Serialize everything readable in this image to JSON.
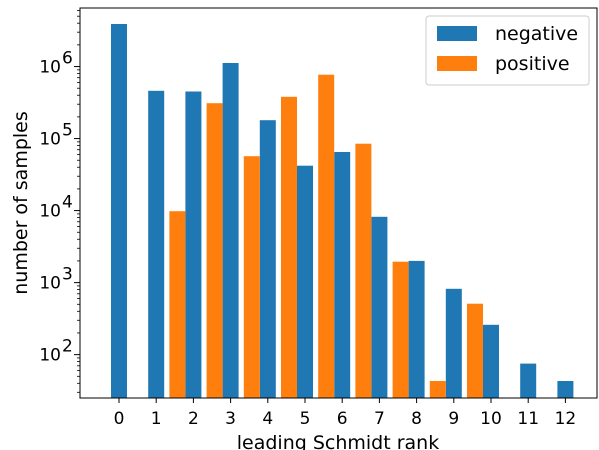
{
  "chart_data": {
    "type": "bar",
    "xlabel": "leading Schmidt rank",
    "ylabel": "number of samples",
    "yscale": "log",
    "ylim": [
      25,
      6500000
    ],
    "categories": [
      "0",
      "1",
      "2",
      "3",
      "4",
      "5",
      "6",
      "7",
      "8",
      "9",
      "10",
      "11",
      "12"
    ],
    "series": [
      {
        "name": "negative",
        "color": "#1f77b4",
        "values": [
          3900000,
          460000,
          450000,
          1120000,
          180000,
          42000,
          65000,
          8200,
          2000,
          820,
          260,
          75,
          43
        ]
      },
      {
        "name": "positive",
        "color": "#ff7f0e",
        "values": [
          null,
          null,
          9800,
          310000,
          57000,
          380000,
          770000,
          85000,
          1950,
          43,
          510,
          null,
          null
        ]
      }
    ],
    "ytick_labels": [
      {
        "base": "10",
        "exp": "2",
        "value": 100
      },
      {
        "base": "10",
        "exp": "3",
        "value": 1000
      },
      {
        "base": "10",
        "exp": "4",
        "value": 10000
      },
      {
        "base": "10",
        "exp": "5",
        "value": 100000
      },
      {
        "base": "10",
        "exp": "6",
        "value": 1000000
      }
    ],
    "legend": {
      "position": "top-right"
    },
    "grid": false
  }
}
